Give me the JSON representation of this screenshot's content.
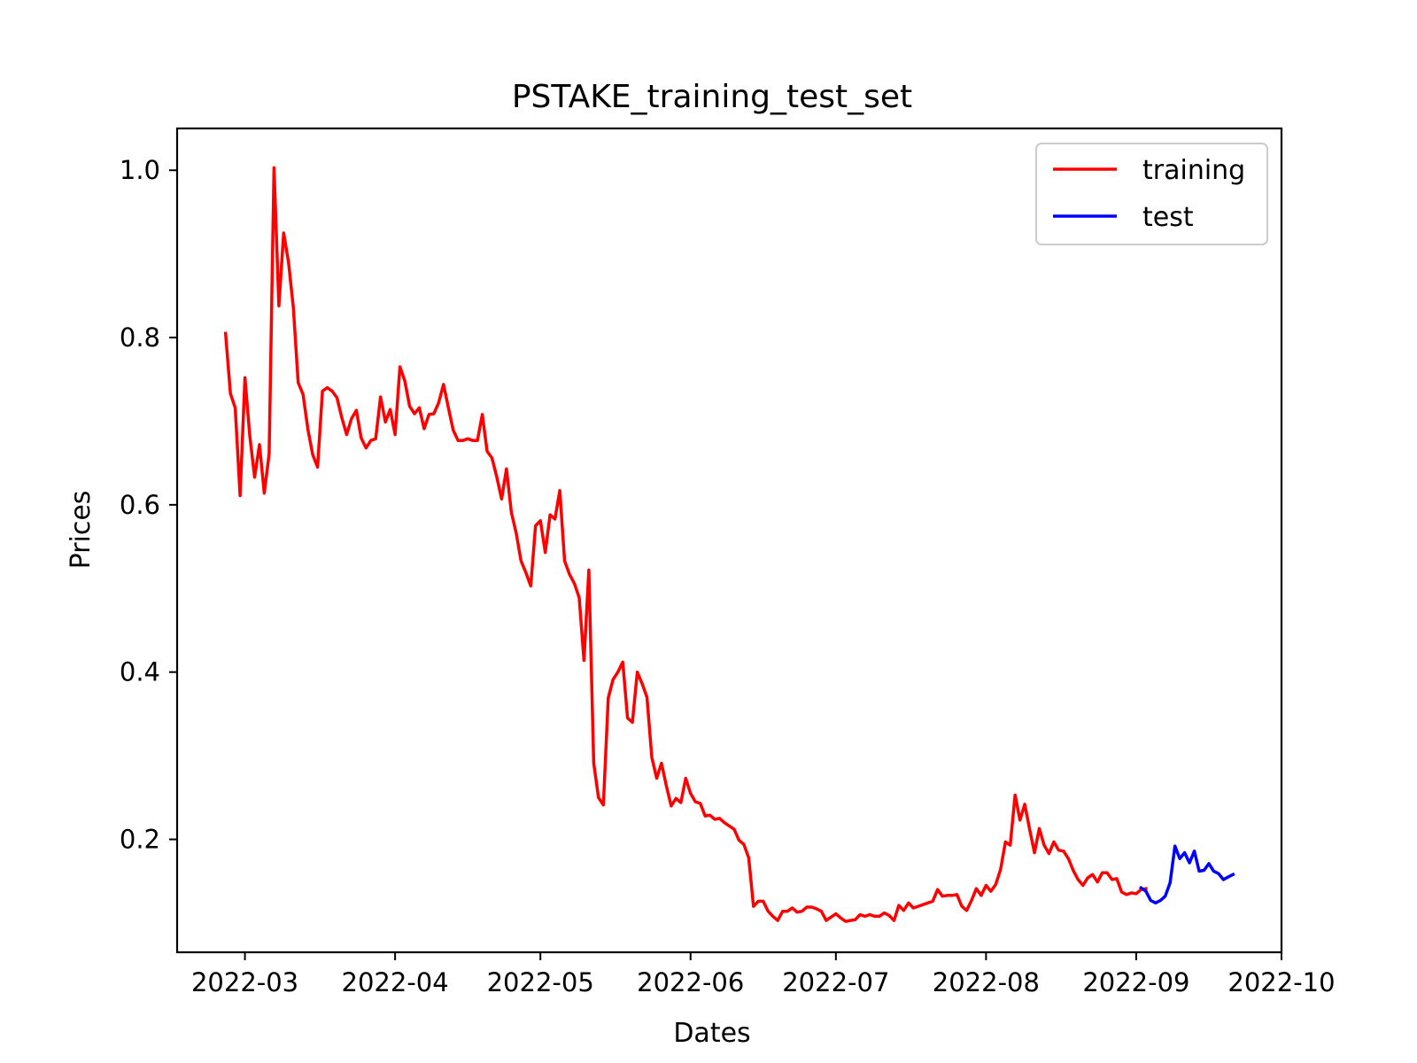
{
  "chart_data": {
    "type": "line",
    "title": "PSTAKE_training_test_set",
    "xlabel": "Dates",
    "ylabel": "Prices",
    "xlim": [
      "2022-02-15",
      "2022-10-01"
    ],
    "ylim": [
      0.065,
      1.05
    ],
    "x_ticks": [
      "2022-03",
      "2022-04",
      "2022-05",
      "2022-06",
      "2022-07",
      "2022-08",
      "2022-09",
      "2022-10"
    ],
    "y_ticks": [
      "0.2",
      "0.4",
      "0.6",
      "0.8",
      "1.0"
    ],
    "grid": false,
    "legend_position": "top-right",
    "series": [
      {
        "name": "training",
        "color": "#ff0000",
        "start_date": "2022-02-25",
        "values": [
          0.805,
          0.733,
          0.716,
          0.611,
          0.752,
          0.683,
          0.633,
          0.672,
          0.614,
          0.661,
          1.003,
          0.838,
          0.925,
          0.89,
          0.835,
          0.746,
          0.732,
          0.69,
          0.66,
          0.645,
          0.736,
          0.74,
          0.736,
          0.728,
          0.704,
          0.684,
          0.703,
          0.713,
          0.68,
          0.668,
          0.677,
          0.679,
          0.729,
          0.699,
          0.714,
          0.684,
          0.765,
          0.748,
          0.718,
          0.709,
          0.716,
          0.691,
          0.708,
          0.709,
          0.722,
          0.744,
          0.716,
          0.689,
          0.677,
          0.677,
          0.679,
          0.677,
          0.677,
          0.708,
          0.664,
          0.656,
          0.633,
          0.607,
          0.643,
          0.591,
          0.566,
          0.533,
          0.519,
          0.503,
          0.575,
          0.581,
          0.543,
          0.588,
          0.583,
          0.617,
          0.533,
          0.517,
          0.506,
          0.489,
          0.414,
          0.522,
          0.291,
          0.25,
          0.241,
          0.369,
          0.391,
          0.4,
          0.412,
          0.345,
          0.34,
          0.4,
          0.386,
          0.37,
          0.298,
          0.273,
          0.291,
          0.264,
          0.24,
          0.249,
          0.244,
          0.273,
          0.255,
          0.245,
          0.243,
          0.228,
          0.229,
          0.224,
          0.225,
          0.22,
          0.216,
          0.212,
          0.199,
          0.194,
          0.178,
          0.12,
          0.126,
          0.126,
          0.114,
          0.108,
          0.103,
          0.114,
          0.114,
          0.118,
          0.113,
          0.114,
          0.119,
          0.119,
          0.117,
          0.114,
          0.103,
          0.107,
          0.111,
          0.106,
          0.102,
          0.103,
          0.104,
          0.11,
          0.108,
          0.11,
          0.108,
          0.108,
          0.112,
          0.109,
          0.103,
          0.121,
          0.115,
          0.124,
          0.118,
          0.12,
          0.122,
          0.124,
          0.126,
          0.14,
          0.132,
          0.133,
          0.133,
          0.134,
          0.12,
          0.115,
          0.127,
          0.141,
          0.133,
          0.145,
          0.138,
          0.146,
          0.164,
          0.197,
          0.193,
          0.253,
          0.223,
          0.242,
          0.212,
          0.184,
          0.213,
          0.193,
          0.183,
          0.197,
          0.187,
          0.186,
          0.177,
          0.163,
          0.152,
          0.145,
          0.154,
          0.158,
          0.149,
          0.16,
          0.16,
          0.152,
          0.153,
          0.137,
          0.134,
          0.136,
          0.135,
          0.14,
          0.141
        ]
      },
      {
        "name": "test",
        "color": "#0000ff",
        "start_date": "2022-09-02",
        "values": [
          0.142,
          0.138,
          0.127,
          0.124,
          0.127,
          0.132,
          0.148,
          0.192,
          0.177,
          0.184,
          0.172,
          0.186,
          0.162,
          0.163,
          0.171,
          0.162,
          0.159,
          0.152,
          0.155,
          0.158
        ]
      }
    ]
  }
}
